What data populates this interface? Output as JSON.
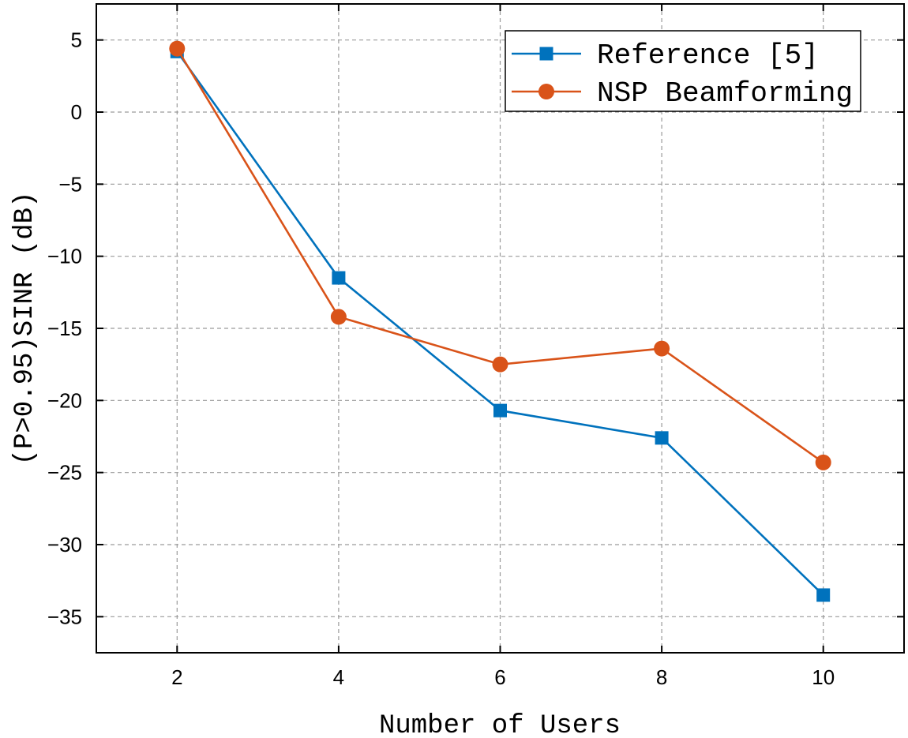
{
  "chart_data": {
    "type": "line",
    "title": "",
    "xlabel": "Number of Users",
    "ylabel": "(P>0.95)SINR (dB)",
    "x": [
      2,
      4,
      6,
      8,
      10
    ],
    "xlim": [
      1,
      11
    ],
    "ylim": [
      -37.5,
      7.5
    ],
    "xticks": [
      2,
      4,
      6,
      8,
      10
    ],
    "yticks": [
      5,
      0,
      -5,
      -10,
      -15,
      -20,
      -25,
      -30,
      -35
    ],
    "ytick_labels": [
      "5",
      "0",
      "−5",
      "−10",
      "−15",
      "−20",
      "−25",
      "−30",
      "−35"
    ],
    "grid": true,
    "legend_position": "top-right",
    "series": [
      {
        "name": "Reference [5]",
        "color": "#0072BD",
        "marker": "square",
        "values": [
          4.2,
          -11.5,
          -20.7,
          -22.6,
          -33.5
        ]
      },
      {
        "name": "NSP Beamforming",
        "color": "#D95319",
        "marker": "circle",
        "values": [
          4.4,
          -14.2,
          -17.5,
          -16.4,
          -24.3
        ]
      }
    ]
  }
}
